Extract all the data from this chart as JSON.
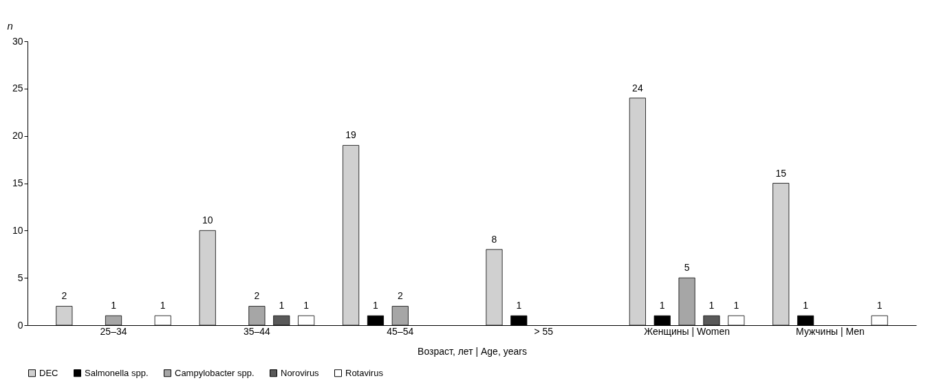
{
  "chart_data": {
    "type": "bar",
    "ylabel": "n",
    "xlabel": "Возраст, лет | Age, years",
    "categories": [
      "25–34",
      "35–44",
      "45–54",
      "> 55",
      "Женщины | Women",
      "Мужчины | Men"
    ],
    "series": [
      {
        "name": "DEC",
        "color": "#d0d0d0",
        "values": [
          2,
          10,
          19,
          8,
          24,
          15
        ]
      },
      {
        "name": "Salmonella spp.",
        "color": "#000000",
        "values": [
          null,
          null,
          1,
          1,
          1,
          1
        ]
      },
      {
        "name": "Campylobacter spp.",
        "color": "#a6a6a6",
        "values": [
          1,
          2,
          2,
          null,
          5,
          null
        ]
      },
      {
        "name": "Norovirus",
        "color": "#595959",
        "values": [
          null,
          1,
          null,
          null,
          1,
          null
        ]
      },
      {
        "name": "Rotavirus",
        "color": "#ffffff",
        "values": [
          1,
          1,
          null,
          null,
          1,
          1
        ]
      }
    ],
    "ylim": [
      0,
      30
    ],
    "yticks": [
      0,
      5,
      10,
      15,
      20,
      25,
      30
    ],
    "grid": false,
    "legend": "bottom",
    "data_labels": true
  }
}
